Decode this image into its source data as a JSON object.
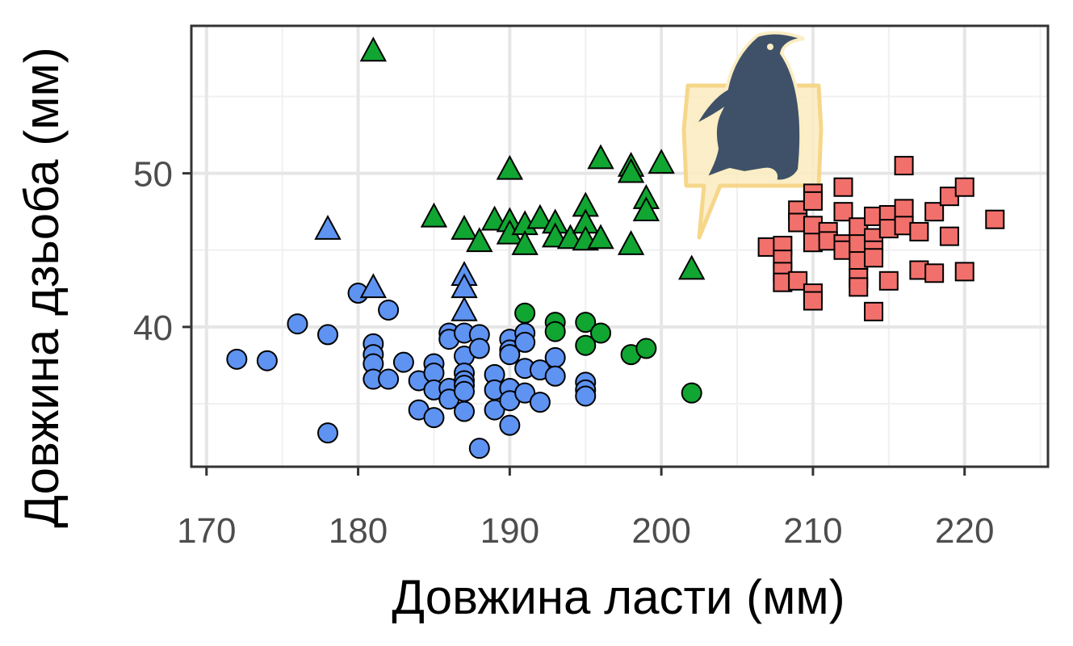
{
  "chart_data": {
    "type": "scatter",
    "title": "",
    "xlabel": "Довжина ласти (мм)",
    "ylabel": "Довжина дзьоба (мм)",
    "xlim": [
      169,
      225.5
    ],
    "ylim": [
      30.9,
      59.6
    ],
    "x_ticks": [
      170,
      180,
      190,
      200,
      210,
      220
    ],
    "y_ticks": [
      40,
      50
    ],
    "x_tick_labels": [
      "170",
      "180",
      "190",
      "200",
      "210",
      "220"
    ],
    "y_tick_labels": [
      "40",
      "50"
    ],
    "grid": true,
    "legend": "none",
    "series": [
      {
        "marker": "circle",
        "color": "#5e93f2",
        "points": [
          [
            172,
            37.9
          ],
          [
            174,
            37.8
          ],
          [
            176,
            40.2
          ],
          [
            178,
            39.5
          ],
          [
            178,
            33.1
          ],
          [
            180,
            42.2
          ],
          [
            181,
            38.9
          ],
          [
            181,
            38.2
          ],
          [
            181,
            37.6
          ],
          [
            181,
            36.6
          ],
          [
            182,
            41.1
          ],
          [
            182,
            36.6
          ],
          [
            183,
            37.7
          ],
          [
            184,
            36.5
          ],
          [
            184,
            34.6
          ],
          [
            185,
            37.6
          ],
          [
            185,
            37.0
          ],
          [
            185,
            35.9
          ],
          [
            185,
            34.1
          ],
          [
            186,
            39.6
          ],
          [
            186,
            39.2
          ],
          [
            186,
            36.0
          ],
          [
            186,
            35.3
          ],
          [
            187,
            39.6
          ],
          [
            187,
            38.1
          ],
          [
            187,
            37.0
          ],
          [
            187,
            36.5
          ],
          [
            187,
            36.2
          ],
          [
            187,
            35.8
          ],
          [
            187,
            34.5
          ],
          [
            188,
            39.5
          ],
          [
            188,
            38.6
          ],
          [
            188,
            32.1
          ],
          [
            189,
            36.9
          ],
          [
            189,
            35.9
          ],
          [
            189,
            34.6
          ],
          [
            190,
            39.2
          ],
          [
            190,
            38.5
          ],
          [
            190,
            38.2
          ],
          [
            190,
            36.0
          ],
          [
            190,
            35.2
          ],
          [
            190,
            33.6
          ],
          [
            191,
            39.6
          ],
          [
            191,
            39.0
          ],
          [
            191,
            37.3
          ],
          [
            191,
            35.7
          ],
          [
            192,
            37.2
          ],
          [
            192,
            35.1
          ],
          [
            193,
            38.0
          ],
          [
            193,
            36.8
          ],
          [
            195,
            36.4
          ],
          [
            195,
            35.9
          ],
          [
            195,
            35.5
          ]
        ]
      },
      {
        "marker": "triangle",
        "color": "#5e93f2",
        "points": [
          [
            178,
            46.4
          ],
          [
            181,
            42.6
          ],
          [
            187,
            43.4
          ],
          [
            187,
            42.6
          ],
          [
            187,
            41.1
          ]
        ]
      },
      {
        "marker": "circle",
        "color": "#11a532",
        "points": [
          [
            191,
            40.9
          ],
          [
            193,
            40.3
          ],
          [
            193,
            39.7
          ],
          [
            195,
            40.3
          ],
          [
            195,
            38.8
          ],
          [
            196,
            39.6
          ],
          [
            198,
            38.2
          ],
          [
            199,
            38.6
          ],
          [
            202,
            35.7
          ]
        ]
      },
      {
        "marker": "triangle",
        "color": "#11a532",
        "points": [
          [
            181,
            58.0
          ],
          [
            185,
            47.2
          ],
          [
            187,
            46.4
          ],
          [
            188,
            45.6
          ],
          [
            189,
            47.0
          ],
          [
            190,
            50.3
          ],
          [
            190,
            46.9
          ],
          [
            190,
            46.1
          ],
          [
            191,
            46.7
          ],
          [
            191,
            45.4
          ],
          [
            192,
            47.1
          ],
          [
            193,
            46.8
          ],
          [
            193,
            45.9
          ],
          [
            194,
            45.8
          ],
          [
            195,
            47.9
          ],
          [
            195,
            46.8
          ],
          [
            195,
            45.7
          ],
          [
            196,
            51.0
          ],
          [
            196,
            45.8
          ],
          [
            198,
            50.5
          ],
          [
            198,
            50.1
          ],
          [
            198,
            45.4
          ],
          [
            199,
            48.4
          ],
          [
            199,
            47.6
          ],
          [
            200,
            50.7
          ],
          [
            202,
            43.8
          ]
        ]
      },
      {
        "marker": "square",
        "color": "#f2706b",
        "points": [
          [
            207,
            45.2
          ],
          [
            208,
            45.3
          ],
          [
            208,
            44.4
          ],
          [
            208,
            43.6
          ],
          [
            208,
            42.9
          ],
          [
            209,
            47.6
          ],
          [
            209,
            46.8
          ],
          [
            209,
            43.0
          ],
          [
            210,
            48.7
          ],
          [
            210,
            48.2
          ],
          [
            210,
            46.6
          ],
          [
            210,
            45.5
          ],
          [
            210,
            42.2
          ],
          [
            210,
            41.7
          ],
          [
            211,
            46.2
          ],
          [
            211,
            45.6
          ],
          [
            212,
            49.1
          ],
          [
            212,
            47.5
          ],
          [
            212,
            45.4
          ],
          [
            212,
            45.0
          ],
          [
            213,
            46.5
          ],
          [
            213,
            45.4
          ],
          [
            213,
            44.3
          ],
          [
            213,
            43.2
          ],
          [
            213,
            42.6
          ],
          [
            214,
            47.2
          ],
          [
            214,
            45.8
          ],
          [
            214,
            45.0
          ],
          [
            214,
            44.5
          ],
          [
            214,
            41.0
          ],
          [
            215,
            47.3
          ],
          [
            215,
            46.4
          ],
          [
            215,
            43.0
          ],
          [
            216,
            50.5
          ],
          [
            216,
            47.7
          ],
          [
            216,
            46.6
          ],
          [
            217,
            46.2
          ],
          [
            217,
            43.7
          ],
          [
            218,
            47.5
          ],
          [
            218,
            43.5
          ],
          [
            219,
            48.5
          ],
          [
            219,
            45.9
          ],
          [
            220,
            49.1
          ],
          [
            220,
            43.6
          ],
          [
            222,
            47.0
          ]
        ]
      }
    ]
  }
}
